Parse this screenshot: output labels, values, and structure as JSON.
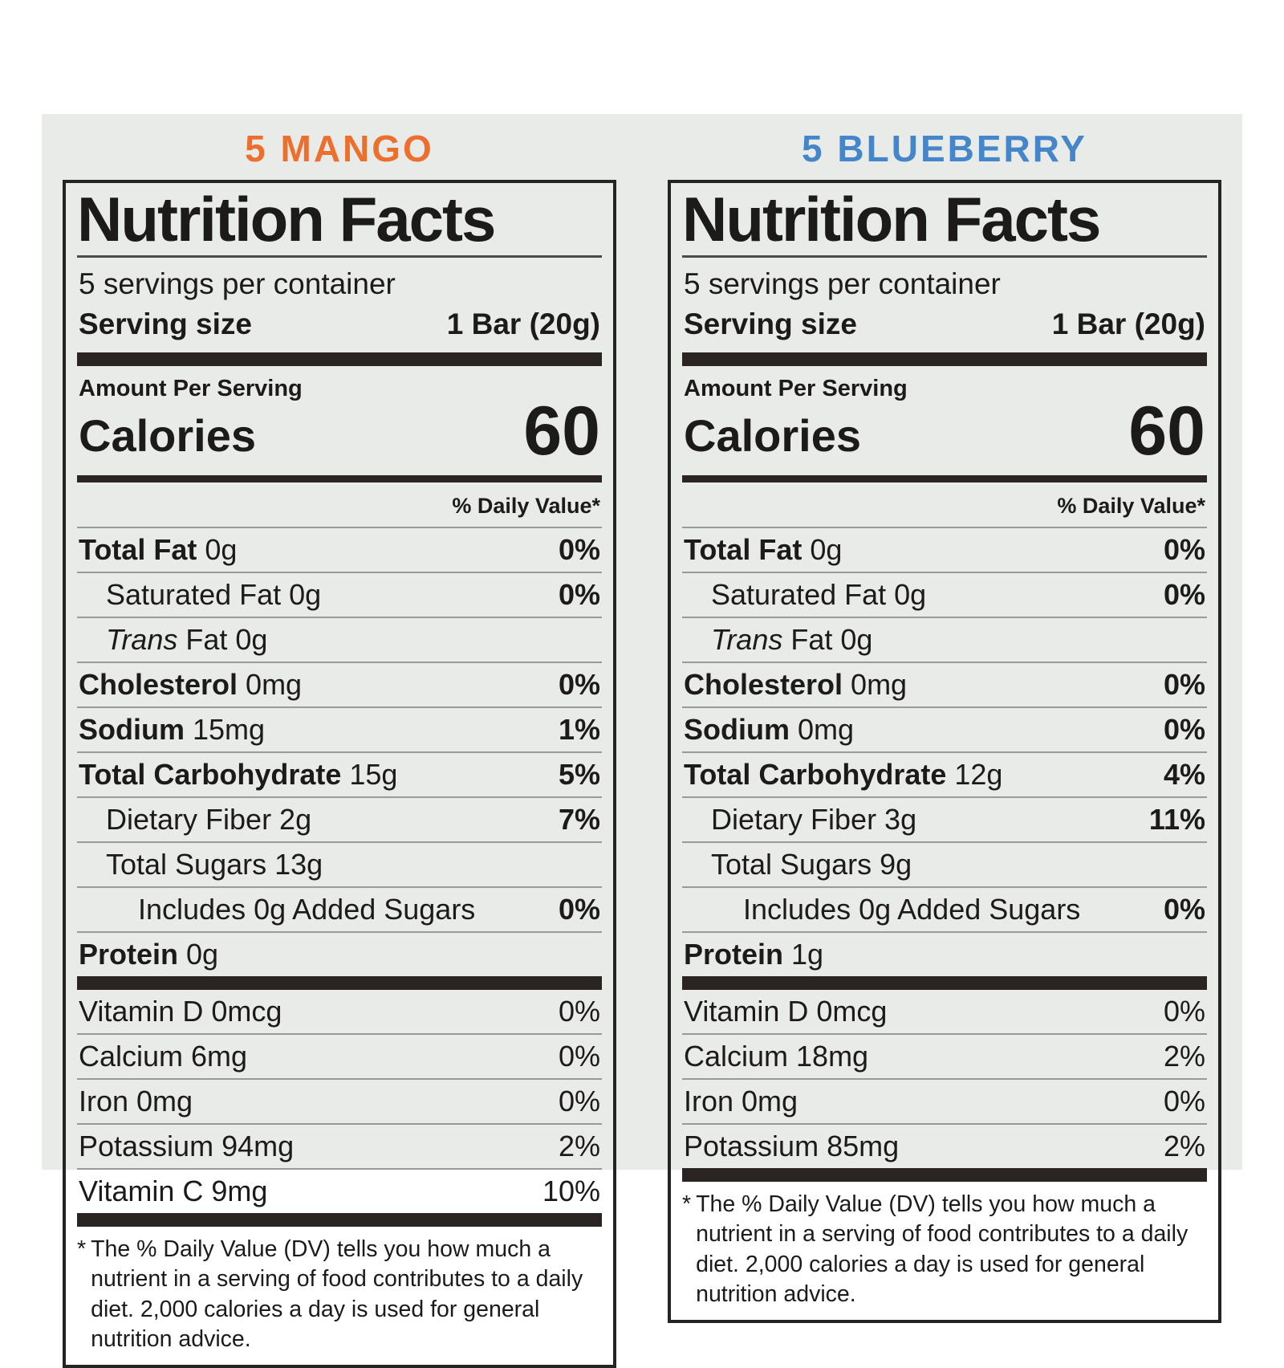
{
  "card": {
    "background": "#e9ebe8"
  },
  "labels": [
    {
      "flavor": "5 MANGO",
      "flavor_color": "#ed6f2d",
      "title": "Nutrition Facts",
      "servings_per_container": "5 servings per container",
      "serving_size": {
        "label": "Serving size",
        "value": "1 Bar (20g)"
      },
      "amount_per_serving": "Amount Per Serving",
      "calories": {
        "label": "Calories",
        "value": "60"
      },
      "daily_value_header": "% Daily Value*",
      "nutrient_rows": [
        {
          "parts": [
            {
              "t": "Total Fat",
              "b": true
            },
            {
              "t": " 0g"
            }
          ],
          "dv": "0%",
          "dv_bold": true
        },
        {
          "parts": [
            {
              "t": "Saturated Fat 0g"
            }
          ],
          "dv": "0%",
          "dv_bold": true,
          "indent": 1
        },
        {
          "parts": [
            {
              "t": "Trans",
              "i": true
            },
            {
              "t": " Fat 0g"
            }
          ],
          "dv": "",
          "indent": 1
        },
        {
          "parts": [
            {
              "t": "Cholesterol",
              "b": true
            },
            {
              "t": " 0mg"
            }
          ],
          "dv": "0%",
          "dv_bold": true
        },
        {
          "parts": [
            {
              "t": "Sodium",
              "b": true
            },
            {
              "t": " 15mg"
            }
          ],
          "dv": "1%",
          "dv_bold": true
        },
        {
          "parts": [
            {
              "t": "Total Carbohydrate",
              "b": true
            },
            {
              "t": " 15g"
            }
          ],
          "dv": "5%",
          "dv_bold": true
        },
        {
          "parts": [
            {
              "t": "Dietary Fiber 2g"
            }
          ],
          "dv": "7%",
          "dv_bold": true,
          "indent": 1
        },
        {
          "parts": [
            {
              "t": "Total Sugars 13g"
            }
          ],
          "dv": "",
          "indent": 1
        },
        {
          "parts": [
            {
              "t": "Includes 0g Added Sugars"
            }
          ],
          "dv": "0%",
          "dv_bold": true,
          "indent": 2
        },
        {
          "parts": [
            {
              "t": "Protein",
              "b": true
            },
            {
              "t": " 0g"
            }
          ],
          "dv": ""
        }
      ],
      "micronutrient_rows": [
        {
          "parts": [
            {
              "t": "Vitamin D 0mcg"
            }
          ],
          "dv": "0%"
        },
        {
          "parts": [
            {
              "t": "Calcium 6mg"
            }
          ],
          "dv": "0%"
        },
        {
          "parts": [
            {
              "t": "Iron 0mg"
            }
          ],
          "dv": "0%"
        },
        {
          "parts": [
            {
              "t": "Potassium 94mg"
            }
          ],
          "dv": "2%"
        },
        {
          "parts": [
            {
              "t": "Vitamin C 9mg"
            }
          ],
          "dv": "10%"
        }
      ],
      "footnote_marker": "*",
      "footnote": "The % Daily Value (DV) tells you how much a nutrient in a serving of food contributes to a daily diet. 2,000 calories a day is used for general nutrition advice."
    },
    {
      "flavor": "5 BLUEBERRY",
      "flavor_color": "#4585c9",
      "title": "Nutrition Facts",
      "servings_per_container": "5 servings per container",
      "serving_size": {
        "label": "Serving size",
        "value": "1 Bar (20g)"
      },
      "amount_per_serving": "Amount Per Serving",
      "calories": {
        "label": "Calories",
        "value": "60"
      },
      "daily_value_header": "% Daily Value*",
      "nutrient_rows": [
        {
          "parts": [
            {
              "t": "Total Fat",
              "b": true
            },
            {
              "t": " 0g"
            }
          ],
          "dv": "0%",
          "dv_bold": true
        },
        {
          "parts": [
            {
              "t": "Saturated Fat 0g"
            }
          ],
          "dv": "0%",
          "dv_bold": true,
          "indent": 1
        },
        {
          "parts": [
            {
              "t": "Trans",
              "i": true
            },
            {
              "t": " Fat 0g"
            }
          ],
          "dv": "",
          "indent": 1
        },
        {
          "parts": [
            {
              "t": "Cholesterol",
              "b": true
            },
            {
              "t": " 0mg"
            }
          ],
          "dv": "0%",
          "dv_bold": true
        },
        {
          "parts": [
            {
              "t": "Sodium",
              "b": true
            },
            {
              "t": " 0mg"
            }
          ],
          "dv": "0%",
          "dv_bold": true
        },
        {
          "parts": [
            {
              "t": "Total Carbohydrate",
              "b": true
            },
            {
              "t": " 12g"
            }
          ],
          "dv": "4%",
          "dv_bold": true
        },
        {
          "parts": [
            {
              "t": "Dietary Fiber 3g"
            }
          ],
          "dv": "11%",
          "dv_bold": true,
          "indent": 1
        },
        {
          "parts": [
            {
              "t": "Total Sugars 9g"
            }
          ],
          "dv": "",
          "indent": 1
        },
        {
          "parts": [
            {
              "t": "Includes 0g Added Sugars"
            }
          ],
          "dv": "0%",
          "dv_bold": true,
          "indent": 2
        },
        {
          "parts": [
            {
              "t": "Protein",
              "b": true
            },
            {
              "t": " 1g"
            }
          ],
          "dv": ""
        }
      ],
      "micronutrient_rows": [
        {
          "parts": [
            {
              "t": "Vitamin D 0mcg"
            }
          ],
          "dv": "0%"
        },
        {
          "parts": [
            {
              "t": "Calcium 18mg"
            }
          ],
          "dv": "2%"
        },
        {
          "parts": [
            {
              "t": "Iron 0mg"
            }
          ],
          "dv": "0%"
        },
        {
          "parts": [
            {
              "t": "Potassium 85mg"
            }
          ],
          "dv": "2%"
        }
      ],
      "footnote_marker": "*",
      "footnote": "The % Daily Value (DV) tells you how much a nutrient in a serving of food contributes to a daily diet. 2,000 calories a day is used for general nutrition advice."
    }
  ]
}
